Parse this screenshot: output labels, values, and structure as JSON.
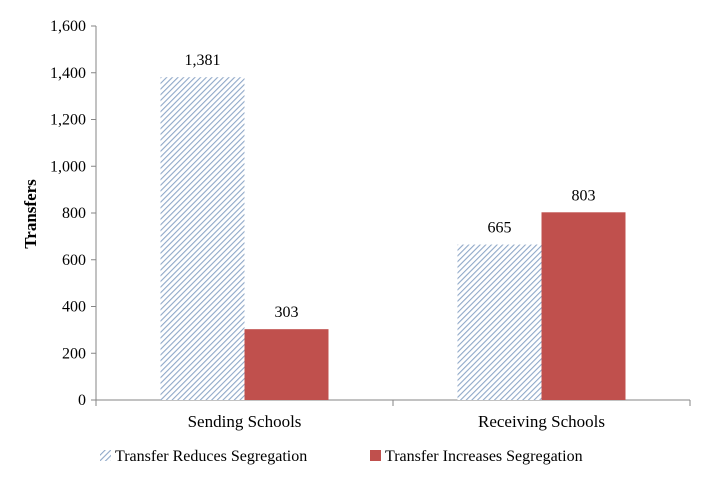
{
  "chart_data": {
    "type": "bar",
    "categories": [
      "Sending Schools",
      "Receiving Schools"
    ],
    "series": [
      {
        "name": "Transfer Reduces Segregation",
        "values": [
          1381,
          665
        ],
        "labels": [
          "1,381",
          "665"
        ],
        "fill": "hatch",
        "color": "#8fa8c8"
      },
      {
        "name": "Transfer Increases Segregation",
        "values": [
          303,
          803
        ],
        "labels": [
          "303",
          "803"
        ],
        "fill": "solid",
        "color": "#c0504d"
      }
    ],
    "title": "",
    "xlabel": "",
    "ylabel": "Transfers",
    "ylim": [
      0,
      1600
    ],
    "yticks": [
      0,
      200,
      400,
      600,
      800,
      1000,
      1200,
      1400,
      1600
    ],
    "ytick_labels": [
      "0",
      "200",
      "400",
      "600",
      "800",
      "1,000",
      "1,200",
      "1,400",
      "1,600"
    ],
    "grid": false,
    "legend_position": "bottom"
  }
}
